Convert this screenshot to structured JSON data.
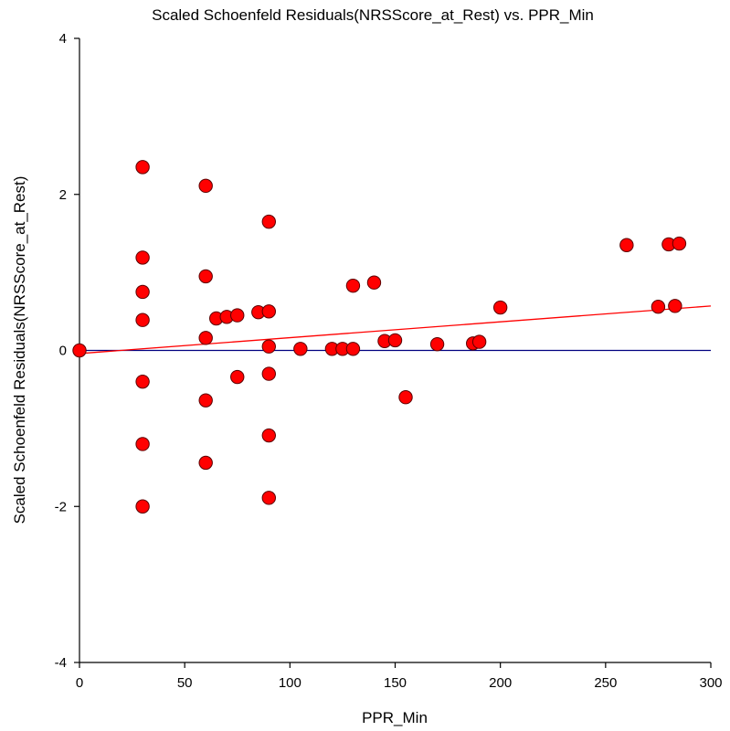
{
  "chart_data": {
    "type": "scatter",
    "title": "Scaled Schoenfeld Residuals(NRSScore_at_Rest) vs. PPR_Min",
    "xlabel": "PPR_Min",
    "ylabel": "Scaled Schoenfeld Residuals(NRSScore_at_Rest)",
    "xlim": [
      0,
      300
    ],
    "ylim": [
      -4,
      4
    ],
    "x_ticks": [
      0,
      50,
      100,
      150,
      200,
      250,
      300
    ],
    "y_ticks": [
      -4,
      -2,
      0,
      2,
      4
    ],
    "grid": false,
    "legend": "none",
    "colors": {
      "marker_fill": "#ff0000",
      "marker_stroke": "#5a0000",
      "trend_line": "#ff0000",
      "zero_line": "#000080",
      "axis": "#000000"
    },
    "trend_line": {
      "x": [
        0,
        300
      ],
      "y": [
        -0.04,
        0.57
      ]
    },
    "zero_line": {
      "y": 0
    },
    "points": [
      {
        "x": 0,
        "y": 0.0
      },
      {
        "x": 30,
        "y": 2.35
      },
      {
        "x": 30,
        "y": 1.19
      },
      {
        "x": 30,
        "y": 0.75
      },
      {
        "x": 30,
        "y": 0.39
      },
      {
        "x": 30,
        "y": -0.4
      },
      {
        "x": 30,
        "y": -1.2
      },
      {
        "x": 30,
        "y": -2.0
      },
      {
        "x": 60,
        "y": 2.11
      },
      {
        "x": 60,
        "y": 0.95
      },
      {
        "x": 60,
        "y": 0.16
      },
      {
        "x": 60,
        "y": -0.64
      },
      {
        "x": 60,
        "y": -1.44
      },
      {
        "x": 65,
        "y": 0.41
      },
      {
        "x": 70,
        "y": 0.43
      },
      {
        "x": 75,
        "y": 0.45
      },
      {
        "x": 75,
        "y": -0.34
      },
      {
        "x": 85,
        "y": 0.49
      },
      {
        "x": 90,
        "y": 1.65
      },
      {
        "x": 90,
        "y": 0.5
      },
      {
        "x": 90,
        "y": 0.05
      },
      {
        "x": 90,
        "y": -0.3
      },
      {
        "x": 90,
        "y": -1.09
      },
      {
        "x": 90,
        "y": -1.89
      },
      {
        "x": 105,
        "y": 0.02
      },
      {
        "x": 120,
        "y": 0.02
      },
      {
        "x": 125,
        "y": 0.02
      },
      {
        "x": 130,
        "y": 0.83
      },
      {
        "x": 130,
        "y": 0.02
      },
      {
        "x": 140,
        "y": 0.87
      },
      {
        "x": 145,
        "y": 0.12
      },
      {
        "x": 150,
        "y": 0.13
      },
      {
        "x": 155,
        "y": -0.6
      },
      {
        "x": 170,
        "y": 0.08
      },
      {
        "x": 187,
        "y": 0.09
      },
      {
        "x": 190,
        "y": 0.11
      },
      {
        "x": 200,
        "y": 0.55
      },
      {
        "x": 260,
        "y": 1.35
      },
      {
        "x": 275,
        "y": 0.56
      },
      {
        "x": 280,
        "y": 1.36
      },
      {
        "x": 283,
        "y": 0.57
      },
      {
        "x": 285,
        "y": 1.37
      }
    ]
  }
}
